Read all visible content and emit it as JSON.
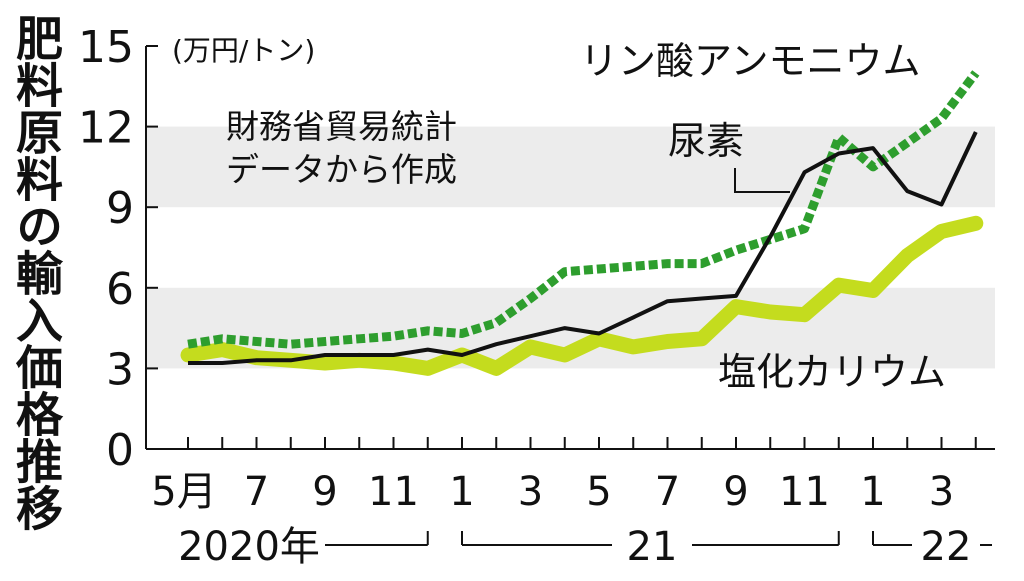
{
  "chart_data": {
    "type": "line",
    "title": "肥料原料の輸入価格推移",
    "unit": "(万円/トン)",
    "source_note": [
      "財務省貿易統計",
      "データから作成"
    ],
    "ylim": [
      0,
      15
    ],
    "yticks": [
      0,
      3,
      6,
      9,
      12,
      15
    ],
    "x": [
      "2020-05",
      "2020-06",
      "2020-07",
      "2020-08",
      "2020-09",
      "2020-10",
      "2020-11",
      "2020-12",
      "2021-01",
      "2021-02",
      "2021-03",
      "2021-04",
      "2021-05",
      "2021-06",
      "2021-07",
      "2021-08",
      "2021-09",
      "2021-10",
      "2021-11",
      "2021-12",
      "2022-01",
      "2022-02",
      "2022-03",
      "2022-04"
    ],
    "xtick_labels": [
      "5月",
      "7",
      "9",
      "11",
      "1",
      "3",
      "5",
      "7",
      "9",
      "11",
      "1",
      "3"
    ],
    "year_labels": [
      "2020年",
      "21",
      "22"
    ],
    "series": [
      {
        "name": "リン酸アンモニウム",
        "color": "#2e9e2e",
        "style": "dotted",
        "values": [
          3.9,
          4.1,
          4.0,
          3.9,
          4.0,
          4.1,
          4.2,
          4.4,
          4.3,
          4.7,
          5.6,
          6.6,
          6.7,
          6.8,
          6.9,
          6.9,
          7.4,
          7.8,
          8.2,
          11.6,
          10.5,
          11.4,
          12.3,
          14.0
        ]
      },
      {
        "name": "尿素",
        "color": "#111111",
        "style": "solid",
        "values": [
          3.2,
          3.2,
          3.3,
          3.3,
          3.5,
          3.5,
          3.5,
          3.7,
          3.5,
          3.9,
          4.2,
          4.5,
          4.3,
          4.9,
          5.5,
          5.6,
          5.7,
          7.9,
          10.3,
          11.0,
          11.2,
          9.6,
          9.1,
          11.8
        ]
      },
      {
        "name": "塩化カリウム",
        "color": "#c4dc1e",
        "style": "thick",
        "values": [
          3.5,
          3.7,
          3.4,
          3.3,
          3.2,
          3.3,
          3.2,
          3.0,
          3.5,
          3.0,
          3.8,
          3.5,
          4.1,
          3.8,
          4.0,
          4.1,
          5.3,
          5.1,
          5.0,
          6.1,
          5.9,
          7.2,
          8.1,
          8.4
        ]
      }
    ],
    "bands": [
      [
        3,
        6
      ],
      [
        9,
        12
      ]
    ],
    "grid": false,
    "legend": "inline"
  }
}
